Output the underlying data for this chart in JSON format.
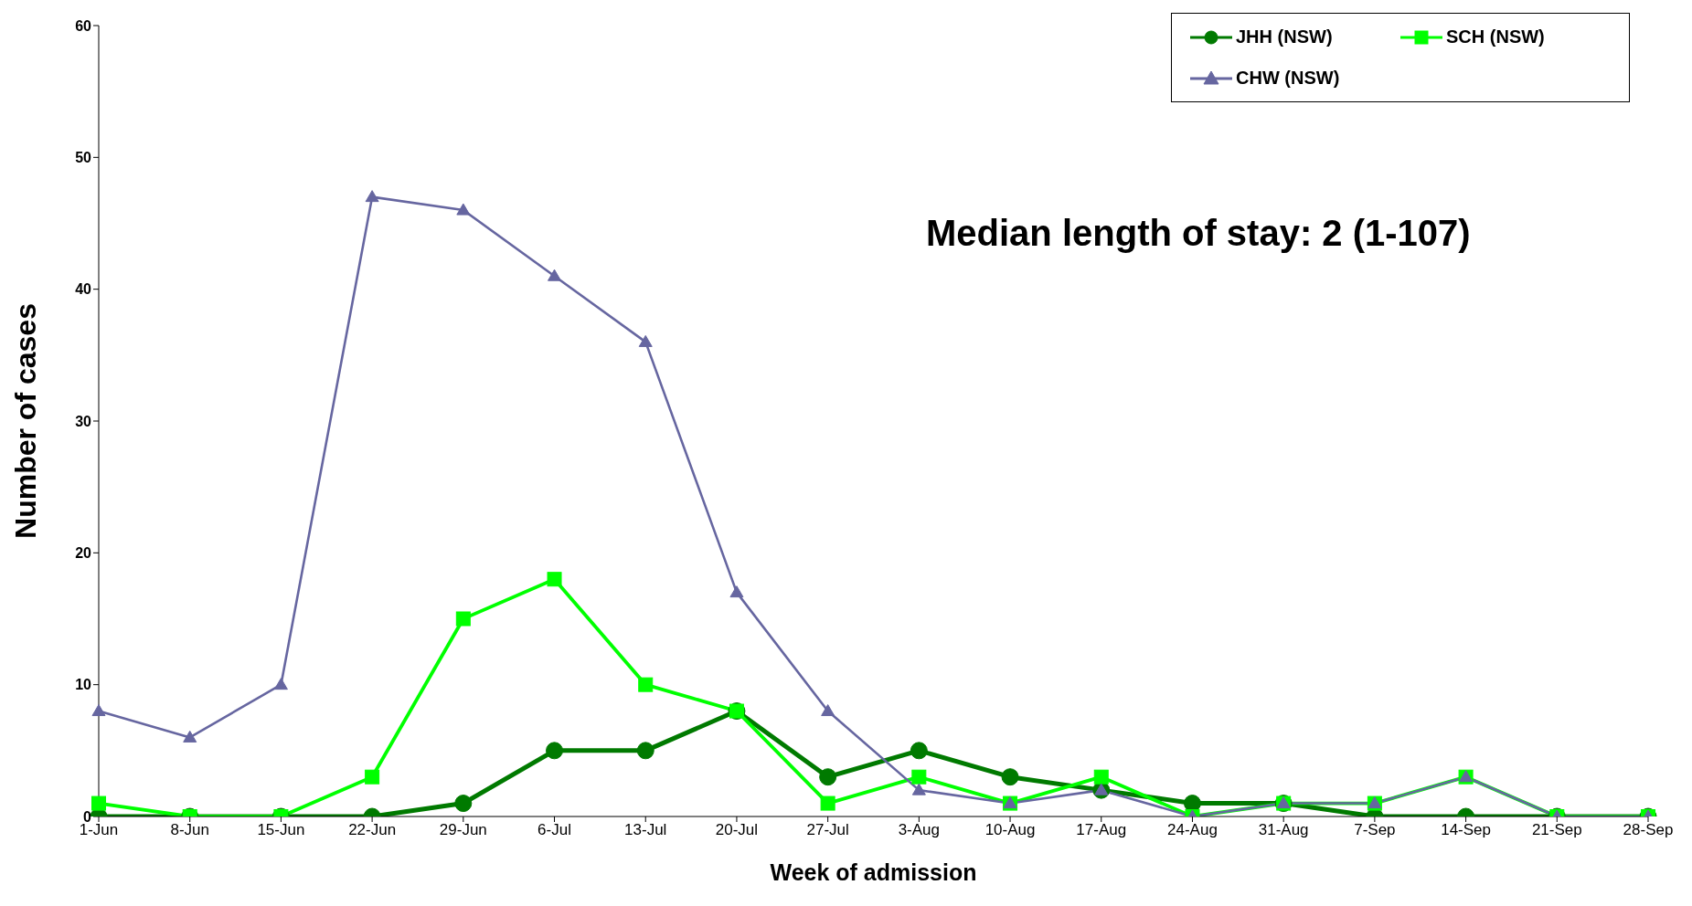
{
  "chart_data": {
    "type": "line",
    "xlabel": "Week of admission",
    "ylabel": "Number of cases",
    "categories": [
      "1-Jun",
      "8-Jun",
      "15-Jun",
      "22-Jun",
      "29-Jun",
      "6-Jul",
      "13-Jul",
      "20-Jul",
      "27-Jul",
      "3-Aug",
      "10-Aug",
      "17-Aug",
      "24-Aug",
      "31-Aug",
      "7-Sep",
      "14-Sep",
      "21-Sep",
      "28-Sep"
    ],
    "series": [
      {
        "name": "JHH (NSW)",
        "color": "#007a00",
        "marker": "circle",
        "values": [
          0,
          0,
          0,
          0,
          1,
          5,
          5,
          8,
          3,
          5,
          3,
          2,
          1,
          1,
          0,
          0,
          0,
          0
        ]
      },
      {
        "name": "SCH (NSW)",
        "color": "#00ff00",
        "marker": "square",
        "values": [
          1,
          0,
          0,
          3,
          15,
          18,
          10,
          8,
          1,
          3,
          1,
          3,
          0,
          1,
          1,
          3,
          0,
          0
        ]
      },
      {
        "name": "CHW (NSW)",
        "color": "#6666a0",
        "marker": "triangle",
        "values": [
          8,
          6,
          10,
          47,
          46,
          41,
          36,
          17,
          8,
          2,
          1,
          2,
          0,
          1,
          1,
          3,
          0,
          0
        ]
      }
    ],
    "ylim": [
      0,
      60
    ],
    "yticks": [
      0,
      10,
      20,
      30,
      40,
      50,
      60
    ],
    "grid": false,
    "legend": "top right",
    "line_style": "solid",
    "annotations": [
      "Median length of stay: 2 (1-107)"
    ]
  }
}
